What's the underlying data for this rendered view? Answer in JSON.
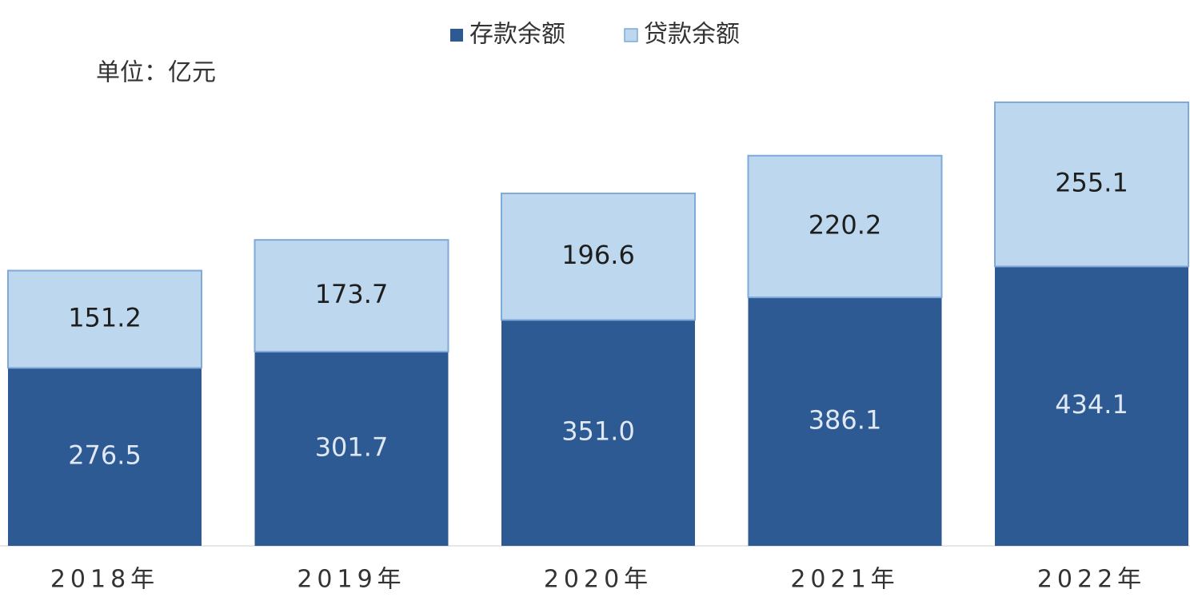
{
  "chart_data": {
    "type": "stacked_bar",
    "unit_label": "单位：亿元",
    "categories": [
      "2018年",
      "2019年",
      "2020年",
      "2021年",
      "2022年"
    ],
    "series": [
      {
        "name": "存款余额",
        "color": "#2e5a93",
        "values": [
          276.5,
          301.7,
          351.0,
          386.1,
          434.1
        ],
        "value_labels": [
          "276.5",
          "301.7",
          "351.0",
          "386.1",
          "434.1"
        ]
      },
      {
        "name": "贷款余额",
        "color": "#bdd7ee",
        "values": [
          151.2,
          173.7,
          196.6,
          220.2,
          255.1
        ],
        "value_labels": [
          "151.2",
          "173.7",
          "196.6",
          "220.2",
          "255.1"
        ]
      }
    ],
    "legend": "top"
  }
}
